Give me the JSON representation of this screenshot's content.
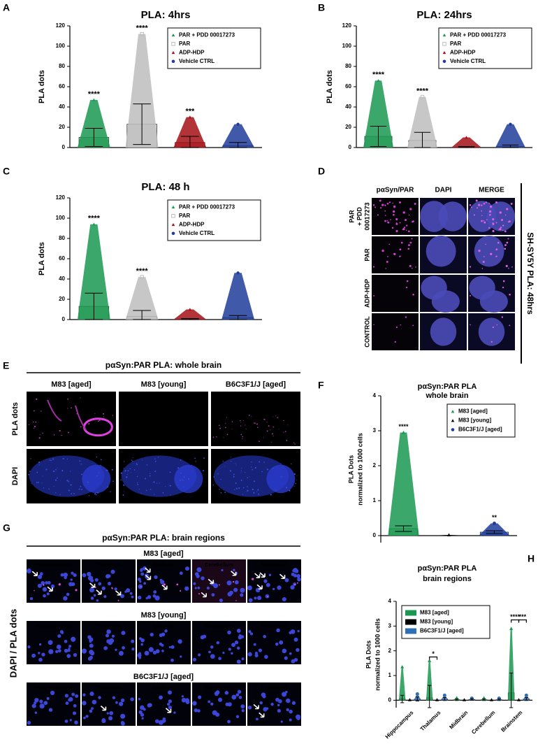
{
  "panel_letters": [
    "A",
    "B",
    "C",
    "D",
    "E",
    "F",
    "G",
    "H"
  ],
  "chart_data": [
    {
      "type": "bar",
      "title": "PLA: 4hrs",
      "ylabel": [
        "PLA dots"
      ],
      "ylim": [
        0,
        120
      ],
      "yticks": [
        0,
        20,
        40,
        60,
        80,
        100,
        120
      ],
      "legend": "upper right",
      "series": [
        {
          "name": "PAR + PDD 00017273",
          "color": "#1a9850",
          "marker": "triangle",
          "values": [
            10
          ],
          "errors": [
            9
          ],
          "max": [
            47
          ],
          "annotations": [
            "****"
          ]
        },
        {
          "name": "PAR",
          "color": "#bdbdbd",
          "marker": "square",
          "values": [
            23
          ],
          "errors": [
            20
          ],
          "max": [
            112
          ],
          "annotations": [
            "****"
          ]
        },
        {
          "name": "ADP-HDP",
          "color": "#a50f15",
          "marker": "triangle",
          "values": [
            5
          ],
          "errors": [
            6
          ],
          "max": [
            30
          ],
          "annotations": [
            "***"
          ]
        },
        {
          "name": "Vehicle CTRL",
          "color": "#1f3c99",
          "marker": "circle",
          "values": [
            2
          ],
          "errors": [
            3
          ],
          "max": [
            23
          ]
        }
      ]
    },
    {
      "type": "bar",
      "title": "PLA: 24hrs",
      "ylabel": [
        "PLA dots"
      ],
      "ylim": [
        0,
        120
      ],
      "yticks": [
        0,
        20,
        40,
        60,
        80,
        100,
        120
      ],
      "legend": "upper right",
      "series": [
        {
          "name": "PAR + PDD 00017273",
          "color": "#1a9850",
          "marker": "triangle",
          "values": [
            11
          ],
          "errors": [
            10
          ],
          "max": [
            66
          ],
          "annotations": [
            "****"
          ]
        },
        {
          "name": "PAR",
          "color": "#bdbdbd",
          "marker": "square",
          "values": [
            7
          ],
          "errors": [
            8
          ],
          "max": [
            50
          ],
          "annotations": [
            "****"
          ]
        },
        {
          "name": "ADP-HDP",
          "color": "#a50f15",
          "marker": "triangle",
          "values": [
            0.5
          ],
          "errors": [
            0.5
          ],
          "max": [
            10
          ]
        },
        {
          "name": "Vehicle CTRL",
          "color": "#1f3c99",
          "marker": "circle",
          "values": [
            1
          ],
          "errors": [
            1.5
          ],
          "max": [
            23
          ]
        }
      ]
    },
    {
      "type": "bar",
      "title": "PLA: 48 h",
      "ylabel": [
        "PLA dots"
      ],
      "ylim": [
        0,
        120
      ],
      "yticks": [
        0,
        20,
        40,
        60,
        80,
        100,
        120
      ],
      "legend": "upper right",
      "series": [
        {
          "name": "PAR + PDD 00017273",
          "color": "#1a9850",
          "marker": "triangle",
          "values": [
            13
          ],
          "errors": [
            13
          ],
          "max": [
            94
          ],
          "annotations": [
            "****"
          ]
        },
        {
          "name": "PAR",
          "color": "#bdbdbd",
          "marker": "square",
          "values": [
            3
          ],
          "errors": [
            6
          ],
          "max": [
            42
          ],
          "annotations": [
            "****"
          ]
        },
        {
          "name": "ADP-HDP",
          "color": "#a50f15",
          "marker": "triangle",
          "values": [
            0.5
          ],
          "errors": [
            0.5
          ],
          "max": [
            10
          ]
        },
        {
          "name": "Vehicle CTRL",
          "color": "#1f3c99",
          "marker": "circle",
          "values": [
            2
          ],
          "errors": [
            2
          ],
          "max": [
            46
          ]
        }
      ]
    },
    {
      "type": "bar",
      "title": [
        "pαSyn:PAR PLA",
        "whole brain"
      ],
      "ylabel": [
        "PLA Dots",
        "normalized to 1000 cells"
      ],
      "ylim": [
        -0.2,
        4
      ],
      "yticks": [
        0,
        1,
        2,
        3,
        4
      ],
      "legend": "upper right",
      "series": [
        {
          "name": "M83 [aged]",
          "color": "#1a9850",
          "marker": "triangle",
          "values": [
            0.2
          ],
          "errors": [
            0.08
          ],
          "max": [
            2.95
          ],
          "annotations": [
            "****"
          ]
        },
        {
          "name": "M83 [young]",
          "color": "#000000",
          "marker": "triangle",
          "values": [
            0
          ],
          "errors": [
            0
          ],
          "max": [
            0.02
          ]
        },
        {
          "name": "B6C3F1/J [aged]",
          "color": "#1f3c99",
          "marker": "circle",
          "values": [
            0.1
          ],
          "errors": [
            0.04
          ],
          "max": [
            0.35
          ],
          "annotations": [
            "**"
          ]
        }
      ]
    },
    {
      "type": "grouped_bar",
      "title": [
        "pαSyn:PAR PLA",
        "brain regions"
      ],
      "ylabel": [
        "PLA Dots",
        "normalized to 1000 cells"
      ],
      "ylim": [
        -0.3,
        4
      ],
      "yticks": [
        0,
        1,
        2,
        3,
        4
      ],
      "legend": "upper left",
      "categories": [
        "Hippocampus",
        "Thalamus",
        "Midbrain",
        "Cerebellum",
        "Brainstem"
      ],
      "series": [
        {
          "name": "M83 [aged]",
          "color": "#1a9850",
          "marker": "triangle",
          "values": [
            0.05,
            0.1,
            0.02,
            0.02,
            0.3
          ],
          "errors": [
            0.15,
            0.5,
            0.03,
            0.03,
            0.8
          ],
          "max": [
            1.35,
            1.6,
            0.1,
            0.1,
            2.9
          ]
        },
        {
          "name": "M83 [young]",
          "color": "#000000",
          "marker": "triangle",
          "values": [
            0,
            0,
            0,
            0,
            0
          ],
          "errors": [
            0,
            0,
            0,
            0,
            0
          ],
          "max": [
            0.02,
            0.02,
            0.02,
            0.02,
            0.02
          ]
        },
        {
          "name": "B6C3F1/J [aged]",
          "color": "#2f6fb3",
          "marker": "circle",
          "values": [
            0.05,
            0.05,
            0.03,
            0.02,
            0.05
          ],
          "errors": [
            0.08,
            0.06,
            0.03,
            0.03,
            0.06
          ],
          "max": [
            0.25,
            0.2,
            0.08,
            0.08,
            0.2
          ]
        }
      ],
      "brackets": [
        {
          "label": "*"
        },
        {
          "label": "****"
        },
        {
          "label": "***"
        }
      ]
    }
  ],
  "panel_d": {
    "columns": [
      "pαSyn/PAR",
      "DAPI",
      "MERGE"
    ],
    "rows": [
      [
        "PAR",
        "+ PDD",
        "00017273"
      ],
      [
        "PAR"
      ],
      [
        "ADP-HDP"
      ],
      [
        "CONTROL"
      ]
    ],
    "side_label": "SH-SY5Y PLA: 48hrs"
  },
  "panel_e": {
    "title": "pαSyn:PAR PLA: whole brain",
    "columns": [
      "M83 [aged]",
      "M83 [young]",
      "B6C3F1/J [aged]"
    ],
    "rows": [
      "PLA dots",
      "DAPI"
    ]
  },
  "panel_g": {
    "title": "pαSyn:PAR PLA: brain regions",
    "groups": [
      "M83 [aged]",
      "M83 [young]",
      "B6C3F1/J [aged]"
    ],
    "regions": [
      "Hippocampus",
      "Thalamus",
      "Midbrain",
      "Cerebellum",
      "Brainstem"
    ],
    "side_label": "DAPI / PLA dots"
  }
}
